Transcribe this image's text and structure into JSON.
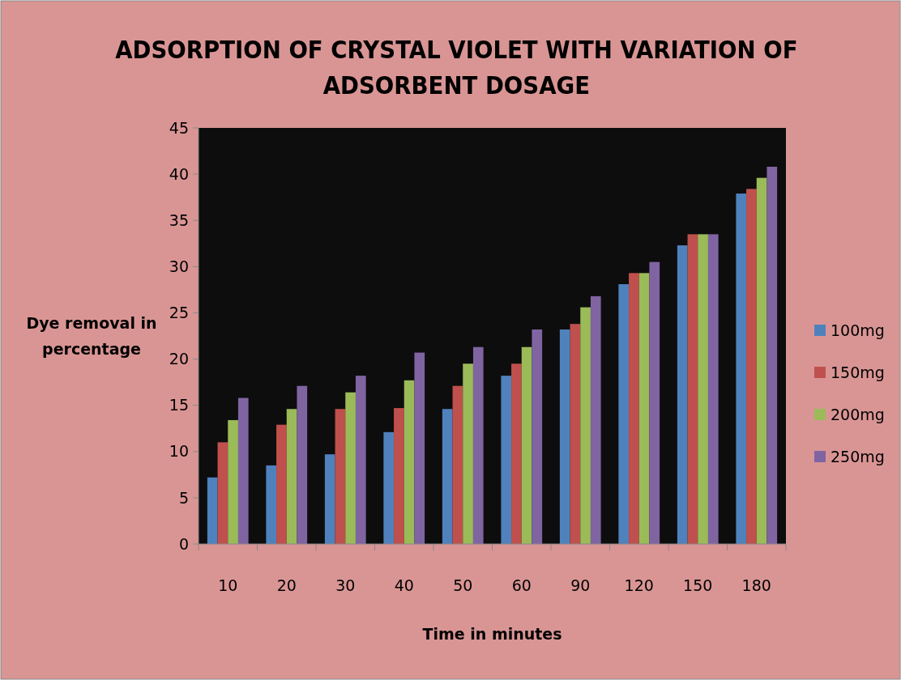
{
  "chart_data": {
    "type": "bar",
    "title": "ADSORPTION OF CRYSTAL VIOLET WITH VARIATION OF ADSORBENT DOSAGE",
    "xlabel": "Time in minutes",
    "ylabel": "Dye removal in percentage",
    "categories": [
      "10",
      "20",
      "30",
      "40",
      "50",
      "60",
      "90",
      "120",
      "150",
      "180"
    ],
    "series": [
      {
        "name": "100mg",
        "color": "#4f81bd",
        "values": [
          7.2,
          8.5,
          9.7,
          12.1,
          14.6,
          18.2,
          23.2,
          28.1,
          32.3,
          37.9
        ]
      },
      {
        "name": "150mg",
        "color": "#c0504d",
        "values": [
          11.0,
          12.9,
          14.6,
          14.7,
          17.1,
          19.5,
          23.8,
          29.3,
          33.5,
          38.4
        ]
      },
      {
        "name": "200mg",
        "color": "#9bbb59",
        "values": [
          13.4,
          14.6,
          16.4,
          17.7,
          19.5,
          21.3,
          25.6,
          29.3,
          33.5,
          39.6
        ]
      },
      {
        "name": "250mg",
        "color": "#8064a2",
        "values": [
          15.8,
          17.1,
          18.2,
          20.7,
          21.3,
          23.2,
          26.8,
          30.5,
          33.5,
          40.8
        ]
      }
    ],
    "ylim": [
      0,
      45
    ],
    "yticks": [
      0,
      5,
      10,
      15,
      20,
      25,
      30,
      35,
      40,
      45
    ],
    "grid": false,
    "legend": "right"
  }
}
